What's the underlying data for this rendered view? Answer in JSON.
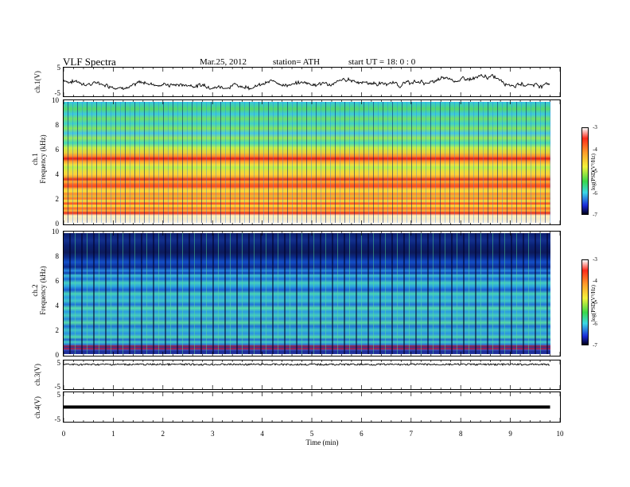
{
  "header": {
    "title": "VLF  Spectra",
    "date": "Mar.25, 2012",
    "station": "station= ATH",
    "start": "start  UT =    18: 0  : 0"
  },
  "panels": {
    "ch1": {
      "ylabel": "ch.1(V)",
      "yticks": [
        "5",
        "-5"
      ]
    },
    "spec1": {
      "ylabel_top": "ch.1",
      "ylabel": "Frequency (kHz)",
      "yticks": [
        "10",
        "8",
        "6",
        "4",
        "2",
        "0"
      ]
    },
    "spec2": {
      "ylabel_top": "ch.2",
      "ylabel": "Frequency (kHz)",
      "yticks": [
        "10",
        "8",
        "6",
        "4",
        "2",
        "0"
      ]
    },
    "ch3": {
      "ylabel": "ch.3(V)",
      "yticks": [
        "5",
        "-5"
      ]
    },
    "ch4": {
      "ylabel": "ch.4(V)",
      "yticks": [
        "5",
        "-5"
      ]
    }
  },
  "colorbar": {
    "label": "log(PSD(V²/Hz)",
    "ticks": [
      "-3",
      "-4",
      "-5",
      "-6",
      "-7"
    ]
  },
  "chart_data": {
    "type": "heatmap",
    "title": "VLF  Spectra",
    "xlabel": "Time  (min)",
    "xlim": [
      0,
      10
    ],
    "xticks": [
      "0",
      "1",
      "2",
      "3",
      "4",
      "5",
      "6",
      "7",
      "8",
      "9",
      "10"
    ],
    "spectrogram_ylim_kHz": [
      0,
      10
    ],
    "colorbar_range": [
      -7,
      -3
    ],
    "data_end_min": 9.8,
    "ch1_trace_range_V": [
      -5,
      5
    ]
  }
}
